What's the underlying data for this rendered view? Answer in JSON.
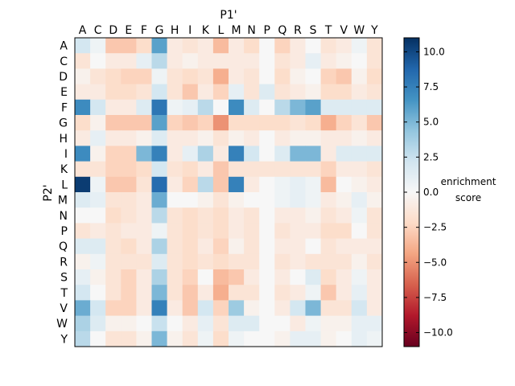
{
  "chart_data": {
    "type": "heatmap",
    "title": "",
    "xlabel": "P1'",
    "ylabel": "P2'",
    "x_categories": [
      "A",
      "C",
      "D",
      "E",
      "F",
      "G",
      "H",
      "I",
      "K",
      "L",
      "M",
      "N",
      "P",
      "Q",
      "R",
      "S",
      "T",
      "V",
      "W",
      "Y"
    ],
    "y_categories": [
      "A",
      "C",
      "D",
      "E",
      "F",
      "G",
      "H",
      "I",
      "K",
      "L",
      "M",
      "N",
      "P",
      "Q",
      "R",
      "S",
      "T",
      "V",
      "W",
      "Y"
    ],
    "colorbar": {
      "label_line1": "enrichment",
      "label_line2": "score",
      "vmin": -11,
      "vmax": 11,
      "ticks": [
        10.0,
        7.5,
        5.0,
        2.5,
        0.0,
        -2.5,
        -5.0,
        -7.5,
        -10.0
      ],
      "tick_labels": [
        "10.0",
        "7.5",
        "5.0",
        "2.5",
        "0.0",
        "−2.5",
        "−5.0",
        "−7.5",
        "−10.0"
      ],
      "colormap": "RdBu"
    },
    "values": [
      [
        2,
        0.5,
        -3,
        -3,
        -2,
        6,
        -1,
        -1.5,
        -1,
        -3.5,
        -1,
        -2,
        0,
        -2.5,
        -1,
        0,
        -1.5,
        -1,
        0.5,
        -1.5
      ],
      [
        -1.5,
        0,
        -1,
        -1,
        1,
        3,
        -1,
        -0.5,
        -1,
        -1,
        -1,
        -1,
        0,
        -1.5,
        -1,
        1,
        -1,
        -0.5,
        0,
        -1.5
      ],
      [
        -0.5,
        -1.5,
        -2,
        -2.5,
        -2.5,
        0.5,
        -1.5,
        -2,
        -1.5,
        -4,
        -1,
        -1.5,
        0,
        -2,
        -0.5,
        0,
        -2.5,
        -3,
        -0.5,
        -2
      ],
      [
        -1,
        -1,
        -2,
        -2,
        -1.5,
        2,
        -1.5,
        -3,
        -1,
        -2.5,
        1,
        -1.5,
        1.5,
        -1.5,
        -1,
        -0.5,
        -2,
        -2,
        -1,
        -1.5
      ],
      [
        7,
        2,
        -1,
        -1,
        1.5,
        8,
        0.5,
        1,
        3,
        0,
        7,
        1.5,
        0,
        3,
        5,
        6,
        1.5,
        1.5,
        1.5,
        1.5
      ],
      [
        -2,
        -0.5,
        -3,
        -3,
        -3,
        6,
        -2.5,
        -3,
        -2.5,
        -5,
        -2,
        -2,
        -2,
        -2,
        -1.5,
        -2,
        -4,
        -2.5,
        -1.5,
        -3
      ],
      [
        -1,
        1,
        -1,
        -1,
        -0.5,
        1.5,
        -1,
        -1,
        -0.5,
        -1.5,
        -0.5,
        -1,
        0,
        -1,
        -0.5,
        -0.5,
        -1,
        -1,
        -0.5,
        -1
      ],
      [
        7,
        -0.5,
        -2.5,
        -2.5,
        5,
        7.5,
        -1,
        1,
        3.5,
        -1,
        7.5,
        2,
        0,
        1.5,
        5,
        5,
        -1,
        1.5,
        1.5,
        1.5
      ],
      [
        -1.5,
        -1.5,
        -2.5,
        -2.5,
        -2,
        2,
        -1.5,
        -2,
        -1,
        -3,
        -1.5,
        -1.5,
        -1.5,
        -1.5,
        -1.5,
        -1.5,
        -2.5,
        -1,
        -1,
        -1.5
      ],
      [
        10.5,
        0.5,
        -3,
        -3,
        -1.5,
        8.5,
        -1,
        -2.5,
        3,
        -3,
        7.5,
        -1,
        0,
        0.5,
        1,
        0.5,
        -3.5,
        0,
        -0.5,
        -1
      ],
      [
        1.5,
        1,
        -1.5,
        -1.5,
        -1,
        5.5,
        0,
        0,
        -0.5,
        -1.5,
        -0.5,
        0,
        0,
        0.5,
        1,
        0.5,
        -1,
        -0.5,
        1,
        -0.5
      ],
      [
        0,
        0,
        -2,
        -1.5,
        -1,
        3,
        -1.5,
        -2,
        -1.5,
        -2,
        -1,
        -1.5,
        0,
        -1,
        -1,
        -0.5,
        -1.5,
        -1,
        0.5,
        -1.5
      ],
      [
        -1.5,
        -1,
        -1.5,
        -1,
        -1,
        0.5,
        -1.5,
        -2,
        -1.5,
        -2,
        -1,
        -1.5,
        0,
        -1.5,
        -1,
        -1,
        -2,
        -2,
        0,
        -1.5
      ],
      [
        1.5,
        1.5,
        -1.5,
        -2,
        -1,
        3.5,
        -1.5,
        -2,
        -1,
        -2.5,
        -0.5,
        -1.5,
        0,
        -1,
        -1,
        0,
        -1.5,
        -1,
        -1,
        -1
      ],
      [
        -0.5,
        0.5,
        -1.5,
        -1.5,
        -1.5,
        1.5,
        -1.5,
        -2,
        -1.5,
        -2,
        -1.5,
        -1.5,
        0,
        -1.5,
        -1,
        -1.5,
        -1.5,
        -1.5,
        -0.5,
        -1.5
      ],
      [
        1,
        -0.5,
        -1.5,
        -2.5,
        -1,
        3.5,
        -1.5,
        -2.5,
        0,
        -3.5,
        -3,
        -1,
        0,
        -1,
        0,
        1.5,
        -2,
        -1,
        0.5,
        -1
      ],
      [
        2,
        0,
        -1.5,
        -2.5,
        -1,
        5,
        -1.5,
        -3,
        -1,
        -4,
        -1.5,
        -1.5,
        0,
        -1.5,
        -1,
        0.5,
        -3,
        -1,
        1,
        -1
      ],
      [
        5.5,
        2,
        -2.5,
        -2.5,
        -1,
        7.5,
        -1,
        -3,
        2,
        -2.5,
        4,
        -0.5,
        0,
        -1,
        2,
        5,
        -1.5,
        -1.5,
        2,
        -1
      ],
      [
        3.5,
        1.5,
        -0.5,
        -0.5,
        0,
        2.5,
        0,
        -1,
        1,
        -1.5,
        1.5,
        1.5,
        0,
        0,
        -1,
        0.5,
        -0.5,
        -0.5,
        1,
        1
      ],
      [
        3,
        0,
        -1.5,
        -1.5,
        -0.5,
        5,
        -0.5,
        -1.5,
        0.5,
        -2,
        0.5,
        0,
        0,
        -0.5,
        1,
        1,
        -0.5,
        0,
        1,
        0.5
      ]
    ]
  }
}
